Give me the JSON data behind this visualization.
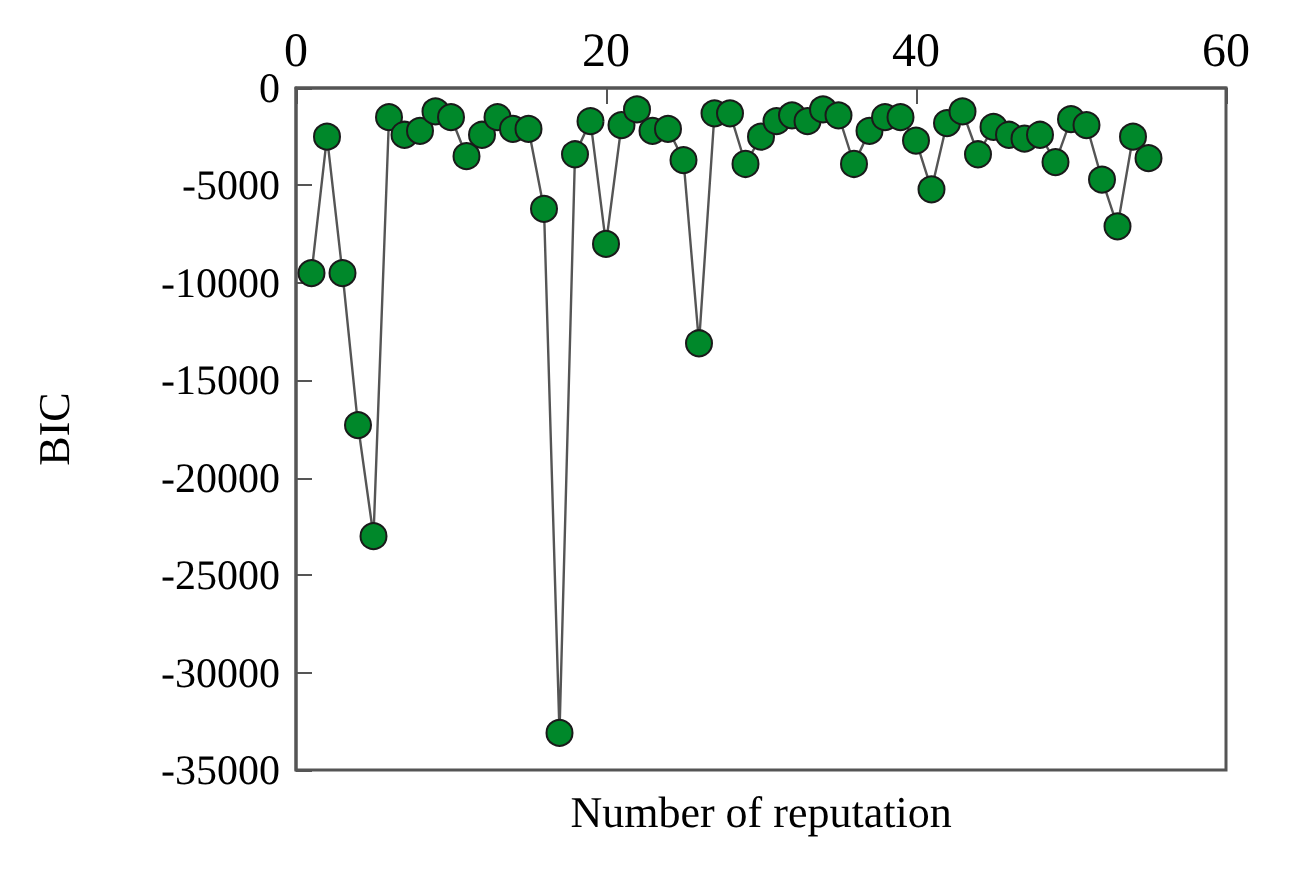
{
  "chart_data": {
    "type": "line",
    "xlabel": "Number of reputation",
    "ylabel": "BIC",
    "x": [
      1,
      2,
      3,
      4,
      5,
      6,
      7,
      8,
      9,
      10,
      11,
      12,
      13,
      14,
      15,
      16,
      17,
      18,
      19,
      20,
      21,
      22,
      23,
      24,
      25,
      26,
      27,
      28,
      29,
      30,
      31,
      32,
      33,
      34,
      35,
      36,
      37,
      38,
      39,
      40,
      41,
      42,
      43,
      44,
      45,
      46,
      47,
      48,
      49,
      50,
      51,
      52,
      53,
      54,
      55
    ],
    "series": [
      {
        "color": "#00882a",
        "values": [
          -9500,
          -2500,
          -9500,
          -17300,
          -23000,
          -1500,
          -2400,
          -2200,
          -1200,
          -1500,
          -3500,
          -2400,
          -1500,
          -2100,
          -2100,
          -6200,
          -33100,
          -3400,
          -1700,
          -8000,
          -1900,
          -1100,
          -2200,
          -2100,
          -3700,
          -13100,
          -1300,
          -1300,
          -3900,
          -2500,
          -1700,
          -1400,
          -1700,
          -1100,
          -1400,
          -3900,
          -2200,
          -1500,
          -1500,
          -2700,
          -5200,
          -1800,
          -1200,
          -3400,
          -2000,
          -2400,
          -2600,
          -2400,
          -3800,
          -1600,
          -1900,
          -4700,
          -7100,
          -2500,
          -3600
        ]
      }
    ],
    "xlim": [
      0,
      60
    ],
    "xticks": [
      0,
      20,
      40,
      60
    ],
    "ylim": [
      -35000,
      0
    ],
    "yticks": [
      -35000,
      -30000,
      -25000,
      -20000,
      -15000,
      -10000,
      -5000,
      0
    ],
    "grid": false,
    "marker": "circle",
    "line_style": "solid"
  }
}
